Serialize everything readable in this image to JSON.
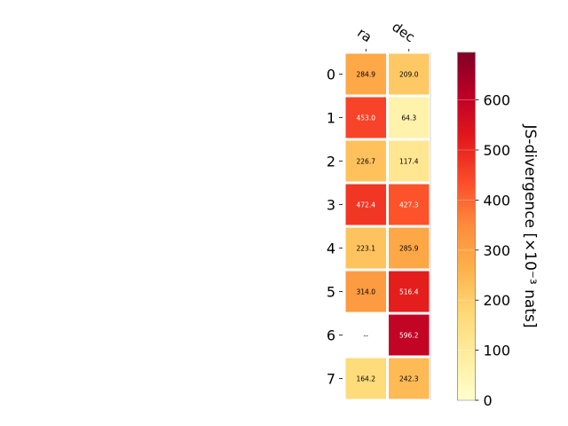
{
  "chart_data": {
    "type": "heatmap",
    "columns": [
      "ra",
      "dec"
    ],
    "rows": [
      "0",
      "1",
      "2",
      "3",
      "4",
      "5",
      "6",
      "7"
    ],
    "values": [
      [
        284.9,
        209.0
      ],
      [
        453.0,
        64.3
      ],
      [
        226.7,
        117.4
      ],
      [
        472.4,
        427.3
      ],
      [
        223.1,
        285.9
      ],
      [
        314.0,
        516.4
      ],
      [
        null,
        596.2
      ],
      [
        164.2,
        242.3
      ]
    ],
    "cell_labels": [
      [
        "284.9",
        "209.0"
      ],
      [
        "453.0",
        "64.3"
      ],
      [
        "226.7",
        "117.4"
      ],
      [
        "472.4",
        "427.3"
      ],
      [
        "223.1",
        "285.9"
      ],
      [
        "314.0",
        "516.4"
      ],
      [
        "--",
        "596.2"
      ],
      [
        "164.2",
        "242.3"
      ]
    ],
    "colorbar": {
      "colormap": "YlOrRd",
      "vmin": 0,
      "vmax": 695,
      "ticks": [
        0,
        100,
        200,
        300,
        400,
        500,
        600
      ],
      "tick_labels": [
        "0",
        "100",
        "200",
        "300",
        "400",
        "500",
        "600"
      ],
      "label": "JS-divergence [×10⁻³ nats]"
    }
  }
}
